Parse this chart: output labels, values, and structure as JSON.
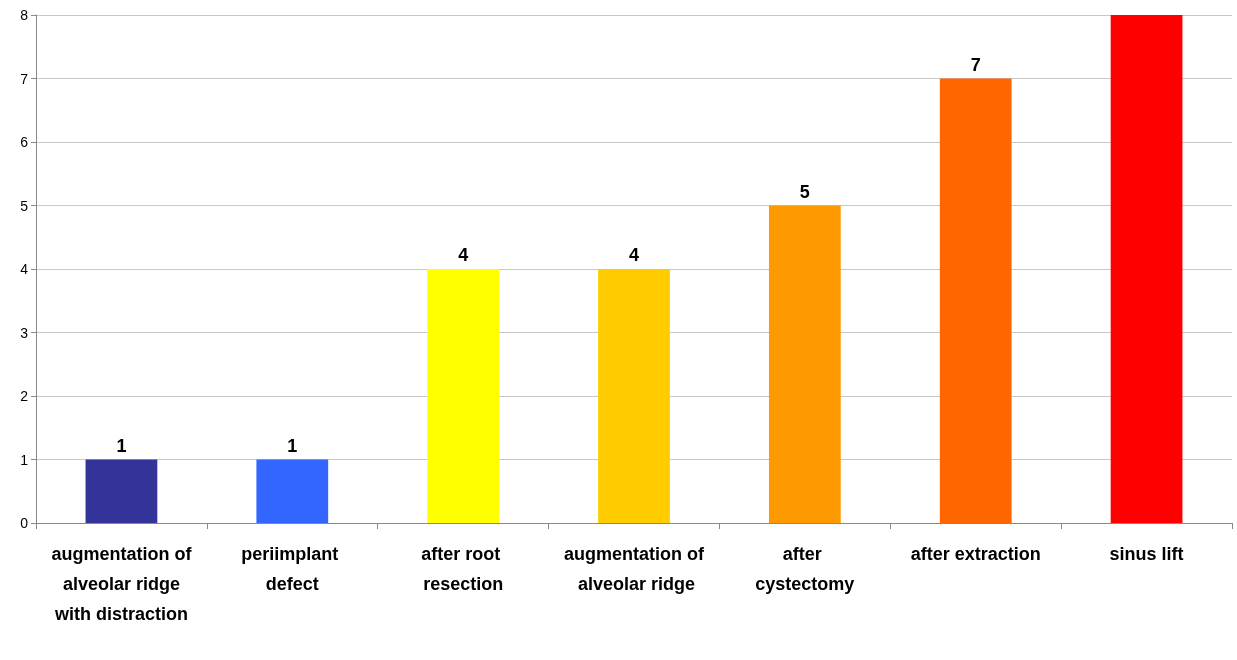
{
  "chart_data": {
    "type": "bar",
    "categories": [
      "augmentation of alveolar ridge with distraction",
      "periimplant defect",
      "after root resection",
      "augmentation of alveolar ridge",
      "after cystectomy",
      "after extraction",
      "sinus lift"
    ],
    "values": [
      1,
      1,
      4,
      4,
      5,
      7,
      8
    ],
    "colors": [
      "#333399",
      "#3366ff",
      "#ffff00",
      "#ffcc00",
      "#ff9900",
      "#ff6600",
      "#ff0000"
    ],
    "value_labels": [
      "1",
      "1",
      "4",
      "4",
      "5",
      "7",
      null
    ],
    "ylim": [
      0,
      8
    ],
    "yticks": [
      0,
      1,
      2,
      3,
      4,
      5,
      6,
      7,
      8
    ],
    "grid": "y"
  }
}
